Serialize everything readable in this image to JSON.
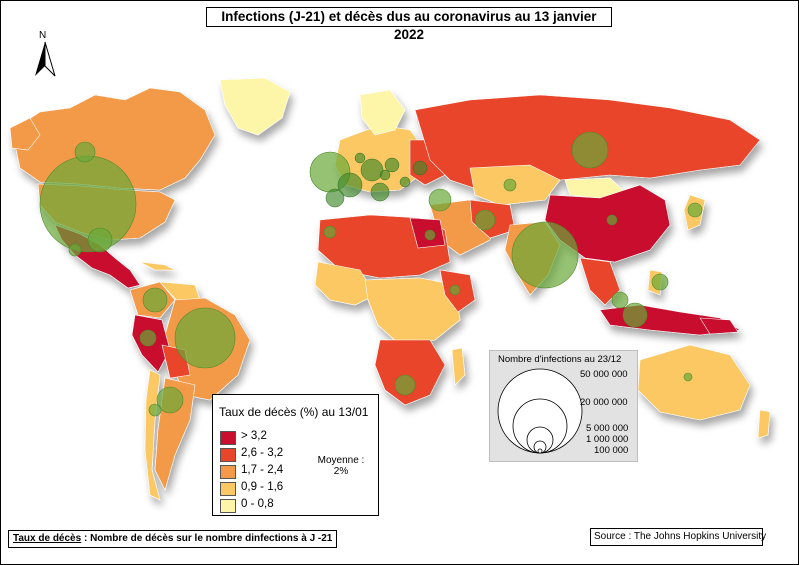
{
  "title": "Infections (J-21) et décès dus au coronavirus au 13 janvier 2022",
  "north_label": "N",
  "colors": {
    "class_1": "#c8102e",
    "class_2": "#e8452a",
    "class_3": "#f39a4a",
    "class_4": "#fbc864",
    "class_5": "#fdf6a8",
    "bubble": "#6aa839",
    "sea_shadow": "#bfbfbf"
  },
  "legend": {
    "title": "Taux de décès (%) au 13/01",
    "classes": [
      {
        "label": "> 3,2",
        "color": "#c8102e"
      },
      {
        "label": "2,6 - 3,2",
        "color": "#e8452a"
      },
      {
        "label": "1,7 - 2,4",
        "color": "#f39a4a"
      },
      {
        "label": "0,9 - 1,6",
        "color": "#fbc864"
      },
      {
        "label": "0 - 0,8",
        "color": "#fdf6a8"
      }
    ],
    "average_line1": "Moyenne :",
    "average_line2": "2%"
  },
  "size_legend": {
    "title": "Nombre d'infections au 23/12",
    "values": [
      "50 000 000",
      "20 000 000",
      "5 000 000",
      "1 000 000",
      "100 000"
    ]
  },
  "footer_left_bold": "Taux de décès",
  "footer_left_rest": " : Nombre de décès sur le nombre dinfections à J -21",
  "footer_right": "Source : The Johns Hopkins University"
}
